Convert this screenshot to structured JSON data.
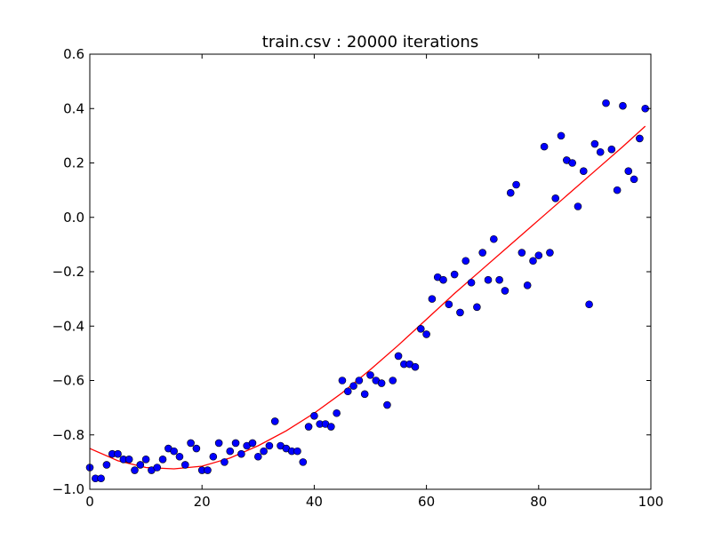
{
  "chart_data": {
    "type": "scatter",
    "title": "train.csv : 20000 iterations",
    "xlabel": "",
    "ylabel": "",
    "xlim": [
      0,
      100
    ],
    "ylim": [
      -1.0,
      0.6
    ],
    "x_ticks": [
      0,
      20,
      40,
      60,
      80,
      100
    ],
    "y_ticks": [
      -1.0,
      -0.8,
      -0.6,
      -0.4,
      -0.2,
      0.0,
      0.2,
      0.4,
      0.6
    ],
    "x_tick_labels": [
      "0",
      "20",
      "40",
      "60",
      "80",
      "100"
    ],
    "y_tick_labels": [
      "−1.0",
      "−0.8",
      "−0.6",
      "−0.4",
      "−0.2",
      "0.0",
      "0.2",
      "0.4",
      "0.6"
    ],
    "grid": false,
    "legend": "none",
    "series": [
      {
        "kind": "scatter",
        "color": "#0000ff",
        "x": [
          0,
          1,
          2,
          3,
          4,
          5,
          6,
          7,
          8,
          9,
          10,
          11,
          12,
          13,
          14,
          15,
          16,
          17,
          18,
          19,
          20,
          21,
          22,
          23,
          24,
          25,
          26,
          27,
          28,
          29,
          30,
          31,
          32,
          33,
          34,
          35,
          36,
          37,
          38,
          39,
          40,
          41,
          42,
          43,
          44,
          45,
          46,
          47,
          48,
          49,
          50,
          51,
          52,
          53,
          54,
          55,
          56,
          57,
          58,
          59,
          60,
          61,
          62,
          63,
          64,
          65,
          66,
          67,
          68,
          69,
          70,
          71,
          72,
          73,
          74,
          75,
          76,
          77,
          78,
          79,
          80,
          81,
          82,
          83,
          84,
          85,
          86,
          87,
          88,
          89,
          90,
          91,
          92,
          93,
          94,
          95,
          96,
          97,
          98,
          99
        ],
        "y": [
          -0.92,
          -0.96,
          -0.96,
          -0.91,
          -0.87,
          -0.87,
          -0.89,
          -0.89,
          -0.93,
          -0.91,
          -0.89,
          -0.93,
          -0.92,
          -0.89,
          -0.85,
          -0.86,
          -0.88,
          -0.91,
          -0.83,
          -0.85,
          -0.93,
          -0.93,
          -0.88,
          -0.83,
          -0.9,
          -0.86,
          -0.83,
          -0.87,
          -0.84,
          -0.83,
          -0.88,
          -0.86,
          -0.84,
          -0.75,
          -0.84,
          -0.85,
          -0.86,
          -0.86,
          -0.9,
          -0.77,
          -0.73,
          -0.76,
          -0.76,
          -0.77,
          -0.72,
          -0.6,
          -0.64,
          -0.62,
          -0.6,
          -0.65,
          -0.58,
          -0.6,
          -0.61,
          -0.69,
          -0.6,
          -0.51,
          -0.54,
          -0.54,
          -0.55,
          -0.41,
          -0.43,
          -0.3,
          -0.22,
          -0.23,
          -0.32,
          -0.21,
          -0.35,
          -0.16,
          -0.24,
          -0.33,
          -0.13,
          -0.23,
          -0.08,
          -0.23,
          -0.27,
          0.09,
          0.12,
          -0.13,
          -0.25,
          -0.16,
          -0.14,
          0.26,
          -0.13,
          0.07,
          0.3,
          0.21,
          0.2,
          0.04,
          0.17,
          -0.32,
          0.27,
          0.24,
          0.42,
          0.25,
          0.1,
          0.41,
          0.17,
          0.14,
          0.29,
          0.4
        ]
      },
      {
        "kind": "line",
        "color": "#ff0000",
        "x": [
          0,
          5,
          10,
          15,
          20,
          25,
          30,
          35,
          40,
          45,
          50,
          55,
          60,
          65,
          70,
          75,
          80,
          85,
          90,
          95,
          99
        ],
        "y": [
          -0.85,
          -0.895,
          -0.92,
          -0.925,
          -0.915,
          -0.885,
          -0.84,
          -0.785,
          -0.72,
          -0.645,
          -0.56,
          -0.47,
          -0.375,
          -0.28,
          -0.19,
          -0.1,
          -0.01,
          0.08,
          0.17,
          0.26,
          0.335
        ]
      }
    ]
  }
}
